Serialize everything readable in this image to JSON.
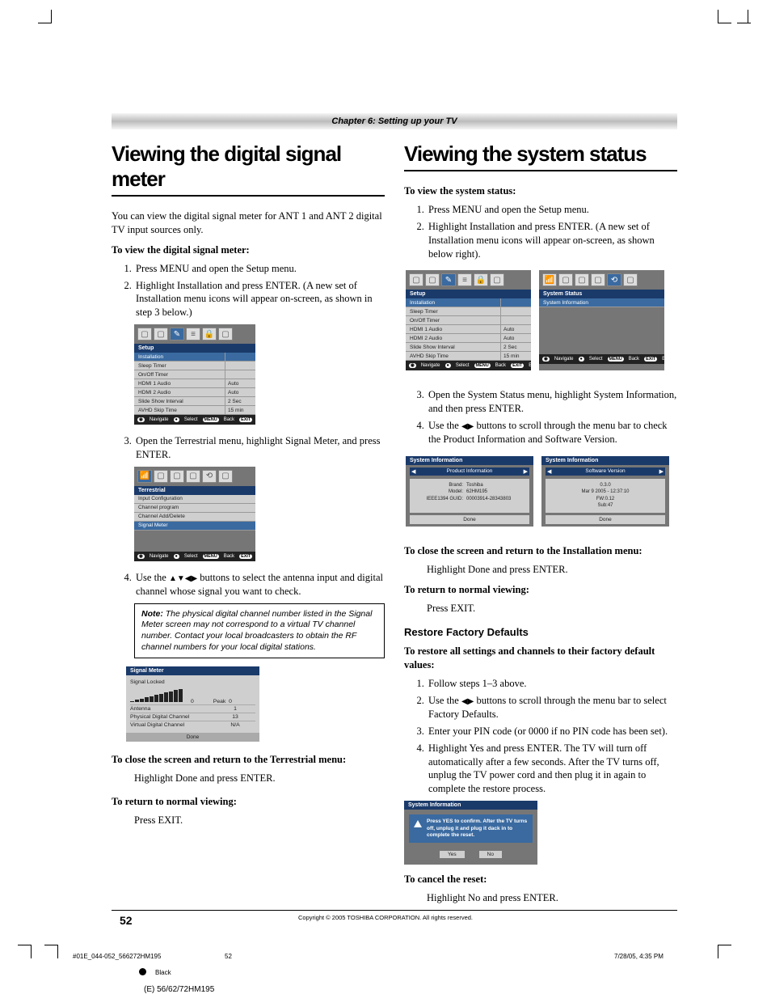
{
  "chapter": "Chapter 6: Setting up your TV",
  "left": {
    "h1": "Viewing the digital signal meter",
    "intro": "You can view the digital signal meter for ANT 1 and ANT 2 digital TV input sources only.",
    "head1": "To view the digital signal meter:",
    "li1": "Press MENU and open the Setup menu.",
    "li2": "Highlight Installation and press ENTER. (A new set of Installation menu icons will appear on-screen, as shown in step 3 below.)",
    "li3": "Open the Terrestrial menu, highlight Signal Meter, and press ENTER.",
    "li4a": "Use the ",
    "li4b": " buttons to select the antenna input and digital channel whose signal you want to check.",
    "note": "The physical digital channel number listed in the Signal Meter screen may not correspond to a virtual TV channel number. Contact your local broadcasters to obtain the RF channel numbers for your local digital stations.",
    "close_h": "To close the screen and return to the Terrestrial menu:",
    "close_t": "Highlight Done and press ENTER.",
    "ret_h": "To return to normal viewing:",
    "ret_t": "Press EXIT."
  },
  "right": {
    "h1": "Viewing the system status",
    "head1": "To view the system status:",
    "li1": "Press MENU and open the Setup menu.",
    "li2": "Highlight Installation and press ENTER. (A new set of Installation menu icons will appear on-screen, as shown below right).",
    "li3": "Open the System Status menu, highlight System Information, and then press ENTER.",
    "li4a": "Use the ",
    "li4b": " buttons to scroll through the menu bar to check the Product Information and Software Version.",
    "close_h": "To close the screen and return to the Installation menu:",
    "close_t": "Highlight Done and press ENTER.",
    "ret_h": "To return to normal viewing:",
    "ret_t": "Press EXIT.",
    "restore_h": "Restore Factory Defaults",
    "restore_head": "To restore all settings and channels to their factory default values:",
    "r1": "Follow steps 1–3 above.",
    "r2a": "Use the ",
    "r2b": " buttons to scroll through the menu bar to select Factory Defaults.",
    "r3": "Enter your PIN code (or 0000 if no PIN code has been set).",
    "r4": "Highlight Yes and press ENTER. The TV will turn off automatically after a few seconds. After the TV turns off, unplug the TV power cord and then plug it in again to complete the restore process.",
    "cancel_h": "To cancel the reset:",
    "cancel_t": "Highlight No and press ENTER."
  },
  "osd_setup": {
    "title": "Setup",
    "rows": [
      {
        "l": "Installation",
        "r": "",
        "sel": true
      },
      {
        "l": "Sleep Timer",
        "r": ""
      },
      {
        "l": "On/Off Timer",
        "r": ""
      },
      {
        "l": "HDMI 1 Audio",
        "r": "Auto"
      },
      {
        "l": "HDMI 2 Audio",
        "r": "Auto"
      },
      {
        "l": "Slide Show Interval",
        "r": "2 Sec"
      },
      {
        "l": "AVHD Skip Time",
        "r": "15 min"
      }
    ]
  },
  "osd_terr": {
    "title": "Terrestrial",
    "rows": [
      {
        "l": "Input Configuration"
      },
      {
        "l": "Channel program"
      },
      {
        "l": "Channel Add/Delete"
      },
      {
        "l": "Signal Meter",
        "sel": true
      }
    ]
  },
  "osd_status": {
    "title": "System Status",
    "row": "System Information"
  },
  "osd_footer": {
    "nav": "Navigate",
    "sel": "Select",
    "menu": "MENU",
    "back": "Back",
    "exit": "EXIT",
    "ex": "Exit"
  },
  "sysinfo": {
    "title": "System Information",
    "tab1": "Product Information",
    "tab2": "Software Version",
    "p1": [
      [
        "Brand:",
        "Toshiba"
      ],
      [
        "Model:",
        "62HM195"
      ],
      [
        "IEEE1394 GUID:",
        "00003914-28343803"
      ]
    ],
    "p2": [
      "0.3.0",
      "Mar 9 2005 - 12:37:10",
      "FW:0.12",
      "Sub:47"
    ],
    "done": "Done"
  },
  "sigmeter": {
    "title": "Signal Meter",
    "locked": "Signal Locked",
    "cur": "0",
    "peak_l": "Peak",
    "peak_v": "0",
    "rows": [
      [
        "Antenna",
        "1"
      ],
      [
        "Physical Digital Channel",
        "13"
      ],
      [
        "Virtual Digital Channel",
        "N/A"
      ]
    ],
    "done": "Done",
    "bars": [
      1,
      2,
      3,
      4,
      5,
      6,
      7,
      8,
      9,
      10,
      11
    ]
  },
  "warn": {
    "title": "System Information",
    "msg": "Press YES to confirm. After the TV turns off, unplug it and plug it dack in to complete the reset.",
    "yes": "Yes",
    "no": "No"
  },
  "page_num": "52",
  "copyright": "Copyright © 2005 TOSHIBA CORPORATION. All rights reserved.",
  "foot": {
    "file": "#01E_044-052_566272HM195",
    "pg": "52",
    "date": "7/28/05, 4:35 PM",
    "black": "Black",
    "model": "(E) 56/62/72HM195"
  },
  "colors": {
    "osd_bg": "#767676",
    "osd_blue": "#1a3a6a",
    "osd_hl": "#3a6aa0",
    "osd_light": "#cfcfcf"
  }
}
